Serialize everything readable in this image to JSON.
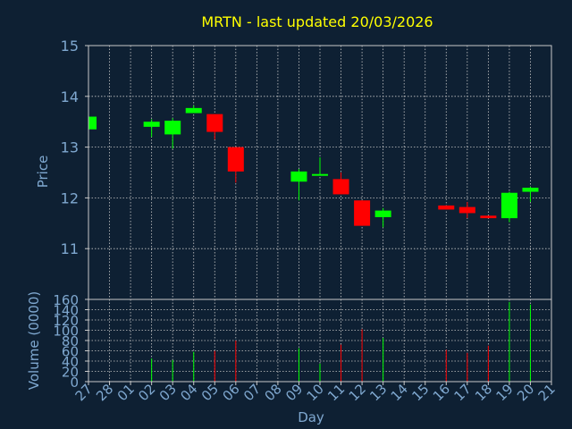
{
  "chart_data": {
    "type": "candlestick",
    "title": "MRTN - last updated 20/03/2026",
    "xlabel": "Day",
    "price_ylabel": "Price",
    "volume_ylabel": "Volume (0000)",
    "x_ticks": [
      "27",
      "28",
      "01",
      "02",
      "03",
      "04",
      "05",
      "06",
      "07",
      "08",
      "09",
      "10",
      "11",
      "12",
      "13",
      "14",
      "15",
      "16",
      "17",
      "18",
      "19",
      "20",
      "21"
    ],
    "price_ylim": [
      10.0,
      15.0
    ],
    "price_ticks": [
      "11",
      "12",
      "13",
      "14",
      "15"
    ],
    "volume_ylim": [
      0,
      160
    ],
    "volume_ticks": [
      "0",
      "20",
      "40",
      "60",
      "80",
      "100",
      "120",
      "140",
      "160"
    ],
    "grid": true,
    "colors": {
      "up": "#00ff00",
      "down": "#ff0000",
      "title": "#ffff00",
      "axis_text": "#7fa8d0",
      "grid": "#c8c8c8",
      "plot_border": "#c8c8c8",
      "background": "#0e2033"
    },
    "candles": [
      {
        "i": 0,
        "open": 13.35,
        "high": 13.62,
        "low": 13.35,
        "close": 13.6,
        "volume": 0
      },
      {
        "i": 3,
        "open": 13.4,
        "high": 13.55,
        "low": 13.2,
        "close": 13.5,
        "volume": 45
      },
      {
        "i": 4,
        "open": 13.25,
        "high": 13.57,
        "low": 12.97,
        "close": 13.52,
        "volume": 42
      },
      {
        "i": 5,
        "open": 13.67,
        "high": 13.82,
        "low": 13.67,
        "close": 13.77,
        "volume": 58
      },
      {
        "i": 6,
        "open": 13.65,
        "high": 13.65,
        "low": 13.15,
        "close": 13.3,
        "volume": 60
      },
      {
        "i": 7,
        "open": 13.0,
        "high": 13.0,
        "low": 12.3,
        "close": 12.52,
        "volume": 80
      },
      {
        "i": 10,
        "open": 12.32,
        "high": 12.57,
        "low": 11.95,
        "close": 12.52,
        "volume": 65
      },
      {
        "i": 11,
        "open": 12.45,
        "high": 12.8,
        "low": 12.45,
        "close": 12.47,
        "volume": 35
      },
      {
        "i": 12,
        "open": 12.37,
        "high": 12.5,
        "low": 12.07,
        "close": 12.07,
        "volume": 72
      },
      {
        "i": 13,
        "open": 11.95,
        "high": 11.95,
        "low": 11.45,
        "close": 11.45,
        "volume": 102
      },
      {
        "i": 14,
        "open": 11.62,
        "high": 11.8,
        "low": 11.42,
        "close": 11.75,
        "volume": 85
      },
      {
        "i": 17,
        "open": 11.85,
        "high": 11.85,
        "low": 11.77,
        "close": 11.77,
        "volume": 62
      },
      {
        "i": 18,
        "open": 11.82,
        "high": 11.92,
        "low": 11.6,
        "close": 11.7,
        "volume": 56
      },
      {
        "i": 19,
        "open": 11.65,
        "high": 11.65,
        "low": 11.6,
        "close": 11.6,
        "volume": 70
      },
      {
        "i": 20,
        "open": 11.6,
        "high": 12.12,
        "low": 11.52,
        "close": 12.1,
        "volume": 155
      },
      {
        "i": 21,
        "open": 12.12,
        "high": 12.22,
        "low": 11.92,
        "close": 12.2,
        "volume": 150
      }
    ]
  }
}
